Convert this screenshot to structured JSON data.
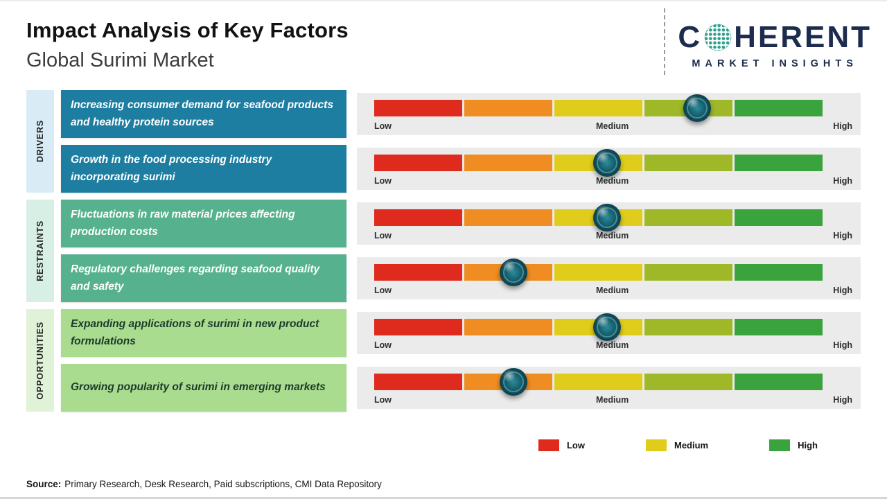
{
  "header": {
    "title": "Impact Analysis of Key Factors",
    "subtitle": "Global Surimi Market"
  },
  "logo": {
    "brand_c": "C",
    "brand_rest": "HERENT",
    "brand_sub": "MARKET INSIGHTS"
  },
  "scale": {
    "low": "Low",
    "medium": "Medium",
    "high": "High"
  },
  "bar": {
    "segment_colors": [
      "#df2b1e",
      "#ef8d22",
      "#e0cd1b",
      "#9eb827",
      "#3ba33e"
    ],
    "track_bg": "#ebebeb",
    "marker_color": "#15616f"
  },
  "groups": [
    {
      "label": "DRIVERS",
      "rows": [
        {
          "text": "Increasing consumer demand for seafood products and healthy protein sources",
          "marker_pct": 72
        },
        {
          "text": "Growth in the food processing industry incorporating surimi",
          "marker_pct": 52
        }
      ]
    },
    {
      "label": "RESTRAINTS",
      "rows": [
        {
          "text": "Fluctuations in raw material prices affecting production costs",
          "marker_pct": 52
        },
        {
          "text": "Regulatory challenges regarding seafood quality and safety",
          "marker_pct": 31
        }
      ]
    },
    {
      "label": "OPPORTUNITIES",
      "rows": [
        {
          "text": "Expanding applications of surimi in new product formulations",
          "marker_pct": 52
        },
        {
          "text": "Growing popularity of surimi in emerging markets",
          "marker_pct": 31
        }
      ]
    }
  ],
  "legend": [
    {
      "label": "Low",
      "color": "#df2b1e"
    },
    {
      "label": "Medium",
      "color": "#e0cd1b"
    },
    {
      "label": "High",
      "color": "#3ba33e"
    }
  ],
  "source": {
    "label": "Source:",
    "text": "Primary Research, Desk Research, Paid subscriptions, CMI Data Repository"
  },
  "chart_data": {
    "type": "bar",
    "title": "Impact Analysis of Key Factors",
    "subtitle": "Global Surimi Market",
    "scale_labels": [
      "Low",
      "Medium",
      "High"
    ],
    "scale_range_pct": [
      0,
      100
    ],
    "legend": [
      "Low",
      "Medium",
      "High"
    ],
    "factors": [
      {
        "category": "Drivers",
        "factor": "Increasing consumer demand for seafood products and healthy protein sources",
        "impact_pct": 72,
        "impact_level": "Medium-High"
      },
      {
        "category": "Drivers",
        "factor": "Growth in the food processing industry incorporating surimi",
        "impact_pct": 52,
        "impact_level": "Medium"
      },
      {
        "category": "Restraints",
        "factor": "Fluctuations in raw material prices affecting production costs",
        "impact_pct": 52,
        "impact_level": "Medium"
      },
      {
        "category": "Restraints",
        "factor": "Regulatory challenges regarding seafood quality and safety",
        "impact_pct": 31,
        "impact_level": "Low-Medium"
      },
      {
        "category": "Opportunities",
        "factor": "Expanding applications of surimi in new product formulations",
        "impact_pct": 52,
        "impact_level": "Medium"
      },
      {
        "category": "Opportunities",
        "factor": "Growing popularity of surimi in emerging markets",
        "impact_pct": 31,
        "impact_level": "Low-Medium"
      }
    ]
  }
}
